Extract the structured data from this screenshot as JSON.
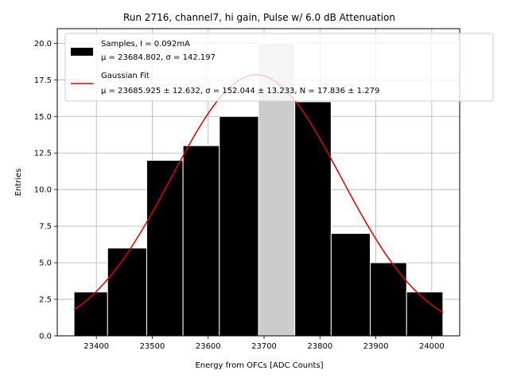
{
  "chart_data": {
    "type": "bar",
    "title": "Run 2716, channel7, hi gain, Pulse w/ 6.0 dB Attenuation",
    "xlabel": "Energy from OFCs [ADC Counts]",
    "ylabel": "Entries",
    "xlim": [
      23330,
      24050
    ],
    "ylim": [
      0,
      21
    ],
    "grid": true,
    "legend_position": "top-right",
    "x_ticks": [
      "23400",
      "23500",
      "23600",
      "23700",
      "23800",
      "23900",
      "24000"
    ],
    "x_tick_values": [
      23400,
      23500,
      23600,
      23700,
      23800,
      23900,
      24000
    ],
    "y_ticks": [
      "0.0",
      "2.5",
      "5.0",
      "7.5",
      "10.0",
      "12.5",
      "15.0",
      "17.5",
      "20.0"
    ],
    "y_tick_values": [
      0,
      2.5,
      5,
      7.5,
      10,
      12.5,
      15,
      17.5,
      20
    ],
    "bin_edges": [
      23360,
      23420,
      23490,
      23555,
      23620,
      23690,
      23755,
      23820,
      23890,
      23955,
      24020
    ],
    "values": [
      3,
      6,
      12,
      13,
      15,
      20,
      16,
      7,
      5,
      3
    ],
    "bar_colors": [
      "#000000",
      "#000000",
      "#000000",
      "#000000",
      "#000000",
      "#cccccc",
      "#000000",
      "#000000",
      "#000000",
      "#000000"
    ],
    "fit": {
      "mu": 23685.925,
      "sigma": 152.044,
      "N": 17.836,
      "x_range": [
        23360,
        24020
      ],
      "color": "#e00000"
    },
    "legend": {
      "samples_line1": "Samples, I = 0.092mA",
      "samples_line2": "μ = 23684.802, σ = 142.197",
      "fit_line1": "Gaussian Fit",
      "fit_line2": "μ = 23685.925 ± 12.632, σ = 152.044 ± 13.233, N = 17.836 ± 1.279"
    }
  }
}
